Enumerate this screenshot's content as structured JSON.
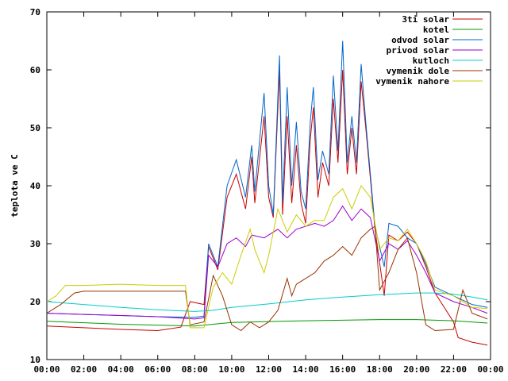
{
  "chart_data": {
    "type": "line",
    "ylabel": "teplota ve C",
    "xlabel": "",
    "ylim": [
      10,
      70
    ],
    "xlim": [
      "00:00",
      "24:00"
    ],
    "yticks": [
      10,
      20,
      30,
      40,
      50,
      60,
      70
    ],
    "xticks": [
      "00:00",
      "02:00",
      "04:00",
      "06:00",
      "08:00",
      "10:00",
      "12:00",
      "14:00",
      "16:00",
      "18:00",
      "20:00",
      "22:00",
      "00:00"
    ],
    "legend_position": "top-right",
    "grid": false,
    "series": [
      {
        "name": "3ti solar",
        "color": "#cc0000",
        "points": [
          [
            "00:00",
            15.8
          ],
          [
            "02:00",
            15.5
          ],
          [
            "04:00",
            15.2
          ],
          [
            "06:00",
            15.0
          ],
          [
            "07:15",
            15.6
          ],
          [
            "07:45",
            20.0
          ],
          [
            "08:30",
            19.5
          ],
          [
            "08:45",
            29.5
          ],
          [
            "09:15",
            25.5
          ],
          [
            "09:45",
            38.0
          ],
          [
            "10:15",
            42.0
          ],
          [
            "10:45",
            36.0
          ],
          [
            "11:05",
            45.0
          ],
          [
            "11:15",
            37.0
          ],
          [
            "11:45",
            52.0
          ],
          [
            "12:00",
            38.0
          ],
          [
            "12:15",
            34.5
          ],
          [
            "12:35",
            60.0
          ],
          [
            "12:45",
            35.0
          ],
          [
            "13:00",
            52.0
          ],
          [
            "13:15",
            37.0
          ],
          [
            "13:30",
            47.0
          ],
          [
            "13:45",
            37.0
          ],
          [
            "14:00",
            33.5
          ],
          [
            "14:15",
            48.0
          ],
          [
            "14:25",
            53.5
          ],
          [
            "14:40",
            38.0
          ],
          [
            "14:55",
            44.0
          ],
          [
            "15:15",
            40.0
          ],
          [
            "15:30",
            55.0
          ],
          [
            "15:45",
            44.0
          ],
          [
            "16:00",
            60.0
          ],
          [
            "16:15",
            42.0
          ],
          [
            "16:30",
            50.0
          ],
          [
            "16:45",
            42.0
          ],
          [
            "17:00",
            58.0
          ],
          [
            "17:15",
            50.0
          ],
          [
            "17:45",
            32.5
          ],
          [
            "18:15",
            21.0
          ],
          [
            "18:30",
            31.5
          ],
          [
            "19:00",
            30.5
          ],
          [
            "19:30",
            32.0
          ],
          [
            "20:00",
            30.0
          ],
          [
            "20:30",
            26.0
          ],
          [
            "21:00",
            21.5
          ],
          [
            "22:00",
            16.5
          ],
          [
            "22:15",
            13.8
          ],
          [
            "23:00",
            13.0
          ],
          [
            "23:50",
            12.5
          ]
        ]
      },
      {
        "name": "kotel",
        "color": "#009900",
        "points": [
          [
            "00:00",
            16.6
          ],
          [
            "04:00",
            16.1
          ],
          [
            "08:00",
            15.8
          ],
          [
            "10:00",
            16.4
          ],
          [
            "14:00",
            16.7
          ],
          [
            "18:00",
            16.9
          ],
          [
            "20:00",
            16.9
          ],
          [
            "22:00",
            16.7
          ],
          [
            "23:50",
            16.3
          ]
        ]
      },
      {
        "name": "odvod solar",
        "color": "#0066cc",
        "points": [
          [
            "00:00",
            18.0
          ],
          [
            "02:00",
            17.8
          ],
          [
            "04:00",
            17.6
          ],
          [
            "06:00",
            17.4
          ],
          [
            "08:00",
            17.3
          ],
          [
            "08:30",
            17.5
          ],
          [
            "08:45",
            30.0
          ],
          [
            "09:15",
            26.0
          ],
          [
            "09:45",
            40.0
          ],
          [
            "10:15",
            44.5
          ],
          [
            "10:45",
            38.0
          ],
          [
            "11:05",
            47.0
          ],
          [
            "11:15",
            39.0
          ],
          [
            "11:45",
            56.0
          ],
          [
            "12:00",
            40.0
          ],
          [
            "12:15",
            35.0
          ],
          [
            "12:35",
            62.5
          ],
          [
            "12:45",
            37.0
          ],
          [
            "13:00",
            57.0
          ],
          [
            "13:15",
            40.0
          ],
          [
            "13:30",
            51.0
          ],
          [
            "13:45",
            39.0
          ],
          [
            "14:00",
            36.0
          ],
          [
            "14:15",
            51.0
          ],
          [
            "14:25",
            57.0
          ],
          [
            "14:40",
            41.0
          ],
          [
            "14:55",
            46.0
          ],
          [
            "15:15",
            42.0
          ],
          [
            "15:30",
            59.0
          ],
          [
            "15:45",
            46.0
          ],
          [
            "16:00",
            65.0
          ],
          [
            "16:15",
            44.0
          ],
          [
            "16:30",
            52.0
          ],
          [
            "16:45",
            44.0
          ],
          [
            "17:00",
            61.0
          ],
          [
            "17:15",
            51.0
          ],
          [
            "17:45",
            33.0
          ],
          [
            "18:15",
            26.0
          ],
          [
            "18:30",
            33.5
          ],
          [
            "19:00",
            33.0
          ],
          [
            "19:30",
            31.0
          ],
          [
            "20:00",
            30.0
          ],
          [
            "20:30",
            26.5
          ],
          [
            "21:00",
            22.5
          ],
          [
            "22:00",
            21.0
          ],
          [
            "23:00",
            19.5
          ],
          [
            "23:50",
            19.0
          ]
        ]
      },
      {
        "name": "privod solar",
        "color": "#9900cc",
        "points": [
          [
            "00:00",
            18.0
          ],
          [
            "02:00",
            17.8
          ],
          [
            "04:00",
            17.6
          ],
          [
            "06:00",
            17.4
          ],
          [
            "08:00",
            17.0
          ],
          [
            "08:30",
            17.2
          ],
          [
            "08:45",
            28.0
          ],
          [
            "09:15",
            26.0
          ],
          [
            "09:45",
            30.0
          ],
          [
            "10:15",
            31.0
          ],
          [
            "10:45",
            29.5
          ],
          [
            "11:05",
            31.5
          ],
          [
            "11:45",
            31.0
          ],
          [
            "12:30",
            32.5
          ],
          [
            "13:00",
            31.0
          ],
          [
            "13:30",
            32.5
          ],
          [
            "14:00",
            33.0
          ],
          [
            "14:30",
            33.5
          ],
          [
            "15:00",
            33.0
          ],
          [
            "15:30",
            34.0
          ],
          [
            "16:00",
            36.5
          ],
          [
            "16:30",
            34.0
          ],
          [
            "17:00",
            36.0
          ],
          [
            "17:30",
            34.5
          ],
          [
            "18:00",
            27.0
          ],
          [
            "18:30",
            30.0
          ],
          [
            "19:00",
            29.0
          ],
          [
            "19:30",
            30.5
          ],
          [
            "20:00",
            28.0
          ],
          [
            "20:30",
            25.0
          ],
          [
            "21:00",
            21.5
          ],
          [
            "22:00",
            20.0
          ],
          [
            "23:00",
            19.0
          ],
          [
            "23:50",
            18.0
          ]
        ]
      },
      {
        "name": "kutloch",
        "color": "#00cccc",
        "points": [
          [
            "00:00",
            20.0
          ],
          [
            "02:00",
            19.5
          ],
          [
            "04:00",
            19.0
          ],
          [
            "06:00",
            18.6
          ],
          [
            "08:00",
            18.3
          ],
          [
            "09:00",
            18.5
          ],
          [
            "10:00",
            19.0
          ],
          [
            "12:00",
            19.6
          ],
          [
            "14:00",
            20.3
          ],
          [
            "16:00",
            20.8
          ],
          [
            "18:00",
            21.2
          ],
          [
            "20:00",
            21.5
          ],
          [
            "21:00",
            21.5
          ],
          [
            "22:00",
            21.3
          ],
          [
            "23:00",
            20.8
          ],
          [
            "23:50",
            20.3
          ]
        ]
      },
      {
        "name": "vymenik dole",
        "color": "#993300",
        "points": [
          [
            "00:00",
            18.0
          ],
          [
            "00:45",
            19.5
          ],
          [
            "01:30",
            21.5
          ],
          [
            "02:00",
            21.8
          ],
          [
            "04:00",
            21.8
          ],
          [
            "06:00",
            21.8
          ],
          [
            "07:30",
            21.8
          ],
          [
            "07:45",
            16.0
          ],
          [
            "08:30",
            16.5
          ],
          [
            "09:00",
            24.5
          ],
          [
            "09:30",
            21.0
          ],
          [
            "10:00",
            16.0
          ],
          [
            "10:30",
            15.0
          ],
          [
            "11:00",
            16.5
          ],
          [
            "11:30",
            15.5
          ],
          [
            "12:00",
            16.5
          ],
          [
            "12:30",
            18.5
          ],
          [
            "13:00",
            24.0
          ],
          [
            "13:15",
            21.0
          ],
          [
            "13:30",
            23.0
          ],
          [
            "14:00",
            24.0
          ],
          [
            "14:30",
            25.0
          ],
          [
            "15:00",
            27.0
          ],
          [
            "15:30",
            28.0
          ],
          [
            "16:00",
            29.5
          ],
          [
            "16:30",
            28.0
          ],
          [
            "17:00",
            31.0
          ],
          [
            "17:30",
            32.5
          ],
          [
            "17:45",
            33.0
          ],
          [
            "18:00",
            22.0
          ],
          [
            "18:30",
            25.0
          ],
          [
            "19:00",
            29.0
          ],
          [
            "19:30",
            31.0
          ],
          [
            "20:00",
            25.0
          ],
          [
            "20:30",
            16.0
          ],
          [
            "21:00",
            15.0
          ],
          [
            "22:00",
            15.2
          ],
          [
            "22:30",
            22.0
          ],
          [
            "23:00",
            18.0
          ],
          [
            "23:50",
            17.0
          ]
        ]
      },
      {
        "name": "vymenik nahore",
        "color": "#cccc00",
        "points": [
          [
            "00:00",
            20.0
          ],
          [
            "00:30",
            21.0
          ],
          [
            "01:00",
            22.8
          ],
          [
            "02:00",
            22.8
          ],
          [
            "04:00",
            23.0
          ],
          [
            "06:00",
            22.8
          ],
          [
            "07:30",
            22.8
          ],
          [
            "07:45",
            15.5
          ],
          [
            "08:30",
            15.5
          ],
          [
            "09:00",
            22.5
          ],
          [
            "09:30",
            25.0
          ],
          [
            "10:00",
            23.0
          ],
          [
            "10:30",
            28.0
          ],
          [
            "11:00",
            32.5
          ],
          [
            "11:15",
            29.0
          ],
          [
            "11:45",
            25.0
          ],
          [
            "12:00",
            28.0
          ],
          [
            "12:30",
            36.0
          ],
          [
            "13:00",
            32.0
          ],
          [
            "13:30",
            35.0
          ],
          [
            "14:00",
            33.0
          ],
          [
            "14:30",
            34.0
          ],
          [
            "15:00",
            34.0
          ],
          [
            "15:30",
            38.0
          ],
          [
            "16:00",
            39.5
          ],
          [
            "16:30",
            36.0
          ],
          [
            "17:00",
            40.0
          ],
          [
            "17:30",
            38.0
          ],
          [
            "18:00",
            29.0
          ],
          [
            "18:30",
            31.0
          ],
          [
            "19:00",
            30.5
          ],
          [
            "19:30",
            32.5
          ],
          [
            "20:00",
            30.0
          ],
          [
            "20:30",
            27.0
          ],
          [
            "21:00",
            22.0
          ],
          [
            "22:00",
            21.0
          ],
          [
            "23:00",
            19.0
          ],
          [
            "23:50",
            18.8
          ]
        ]
      }
    ]
  }
}
